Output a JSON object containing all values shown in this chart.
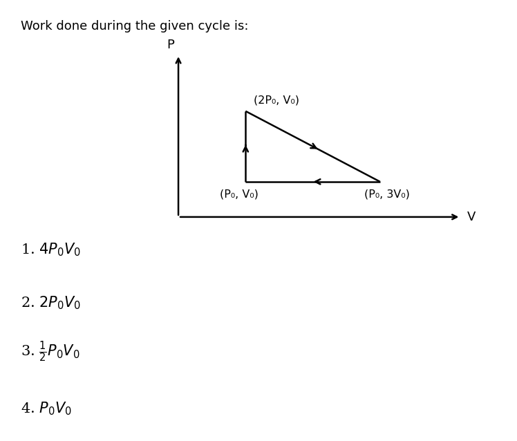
{
  "title": "Work done during the given cycle is:",
  "title_fontsize": 13,
  "bg_color": "#ffffff",
  "text_color": "#000000",
  "options": [
    "1. $4P_0V_0$",
    "2. $2P_0V_0$",
    "3. $\\frac{1}{2}P_0V_0$",
    "4. $P_0V_0$"
  ],
  "options_fontsize": 15,
  "diagram": {
    "A": [
      2,
      2
    ],
    "B": [
      2,
      1
    ],
    "C": [
      4,
      1
    ],
    "label_A": "(2P₀, V₀)",
    "label_B": "(P₀, V₀)",
    "label_C": "(P₀, 3V₀)",
    "axis_orig_x": 1.0,
    "axis_orig_y": 0.5,
    "axis_end_x": 5.2,
    "axis_end_y": 2.8,
    "axis_label_x": "V",
    "axis_label_y": "P",
    "xlim": [
      0.5,
      5.5
    ],
    "ylim": [
      0.2,
      3.2
    ]
  }
}
